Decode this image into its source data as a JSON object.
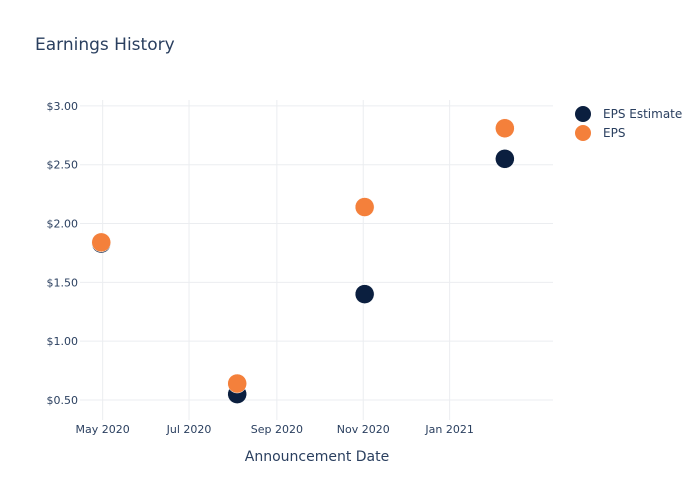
{
  "chart_data": {
    "type": "scatter",
    "title": "Earnings History",
    "xlabel": "Announcement Date",
    "ylabel": "",
    "x_tick_labels": [
      {
        "date": "2020-05-01",
        "label": "May 2020"
      },
      {
        "date": "2020-07-01",
        "label": "Jul 2020"
      },
      {
        "date": "2020-09-01",
        "label": "Sep 2020"
      },
      {
        "date": "2020-11-01",
        "label": "Nov 2020"
      },
      {
        "date": "2021-01-01",
        "label": "Jan 2021"
      }
    ],
    "y_tick_labels": [
      {
        "value": 0.5,
        "label": "$0.50"
      },
      {
        "value": 1.0,
        "label": "$1.00"
      },
      {
        "value": 1.5,
        "label": "$1.50"
      },
      {
        "value": 2.0,
        "label": "$2.00"
      },
      {
        "value": 2.5,
        "label": "$2.50"
      },
      {
        "value": 3.0,
        "label": "$3.00"
      }
    ],
    "xlim": [
      "2020-04-15",
      "2021-03-15"
    ],
    "ylim": [
      0.33,
      3.05
    ],
    "grid": true,
    "legend_position": "top-right",
    "series": [
      {
        "name": "EPS Estimate",
        "color": "#0b1f3f",
        "points": [
          {
            "x": "2020-04-30",
            "y": 1.83
          },
          {
            "x": "2020-08-04",
            "y": 0.55
          },
          {
            "x": "2020-11-02",
            "y": 1.4
          },
          {
            "x": "2021-02-09",
            "y": 2.55
          }
        ]
      },
      {
        "name": "EPS",
        "color": "#f4803b",
        "points": [
          {
            "x": "2020-04-30",
            "y": 1.84
          },
          {
            "x": "2020-08-04",
            "y": 0.64
          },
          {
            "x": "2020-11-02",
            "y": 2.14
          },
          {
            "x": "2021-02-09",
            "y": 2.81
          }
        ]
      }
    ]
  }
}
